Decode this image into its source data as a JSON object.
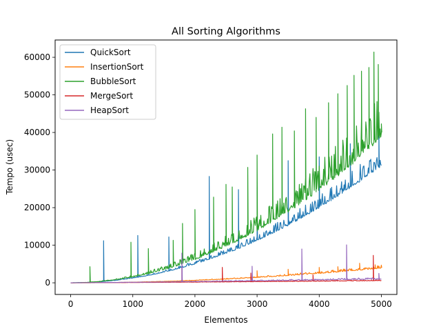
{
  "chart_data": {
    "type": "line",
    "title": "All Sorting Algorithms",
    "xlabel": "Elementos",
    "ylabel": "Tempo (usec)",
    "xlim": [
      -250,
      5250
    ],
    "ylim": [
      -3100,
      64600
    ],
    "xticks": [
      0,
      1000,
      2000,
      3000,
      4000,
      5000
    ],
    "xtick_labels": [
      "0",
      "1000",
      "2000",
      "3000",
      "4000",
      "5000"
    ],
    "yticks": [
      0,
      10000,
      20000,
      30000,
      40000,
      50000,
      60000
    ],
    "ytick_labels": [
      "0",
      "10000",
      "20000",
      "30000",
      "40000",
      "50000",
      "60000"
    ],
    "grid": false,
    "legend_position": "top-left",
    "x": [
      0,
      250,
      500,
      750,
      1000,
      1250,
      1500,
      1750,
      2000,
      2250,
      2500,
      2750,
      3000,
      3250,
      3500,
      3750,
      4000,
      4250,
      4500,
      4750,
      5000
    ],
    "series": [
      {
        "name": "QuickSort",
        "color": "#1f77b4",
        "values": [
          0,
          80,
          320,
          720,
          1270,
          1990,
          2860,
          3900,
          5090,
          6440,
          7950,
          9620,
          11450,
          13440,
          15590,
          17900,
          20360,
          22990,
          25770,
          28710,
          31800
        ],
        "spikes": [
          [
            530,
            11200
          ],
          [
            1080,
            12600
          ],
          [
            1580,
            12200
          ],
          [
            2230,
            28300
          ],
          [
            2700,
            24800
          ],
          [
            3000,
            25500
          ],
          [
            3500,
            32500
          ],
          [
            4000,
            33500
          ],
          [
            4500,
            37000
          ],
          [
            4960,
            40500
          ]
        ]
      },
      {
        "name": "InsertionSort",
        "color": "#ff7f0e",
        "values": [
          0,
          10,
          40,
          90,
          160,
          250,
          360,
          490,
          640,
          810,
          1000,
          1210,
          1440,
          1690,
          1960,
          2250,
          2560,
          2890,
          3240,
          3610,
          4000
        ],
        "spikes": [
          [
            3000,
            3200
          ],
          [
            3500,
            3600
          ],
          [
            4000,
            4100
          ],
          [
            4300,
            4300
          ],
          [
            4650,
            5200
          ],
          [
            4900,
            4800
          ],
          [
            5000,
            4600
          ]
        ]
      },
      {
        "name": "BubbleSort",
        "color": "#2ca02c",
        "values": [
          0,
          100,
          400,
          900,
          1600,
          2500,
          3600,
          4900,
          6400,
          8100,
          10000,
          12100,
          14400,
          16900,
          19600,
          22500,
          25600,
          28900,
          32400,
          36100,
          40000
        ],
        "spikes": [
          [
            310,
            4300
          ],
          [
            970,
            10800
          ],
          [
            1250,
            9100
          ],
          [
            1650,
            11300
          ],
          [
            1800,
            15800
          ],
          [
            2000,
            19500
          ],
          [
            2300,
            22800
          ],
          [
            2500,
            26200
          ],
          [
            2600,
            25500
          ],
          [
            2850,
            30700
          ],
          [
            3000,
            34000
          ],
          [
            3250,
            39600
          ],
          [
            3400,
            41400
          ],
          [
            3600,
            40400
          ],
          [
            3780,
            46300
          ],
          [
            3950,
            44000
          ],
          [
            4150,
            47900
          ],
          [
            4300,
            50300
          ],
          [
            4450,
            52500
          ],
          [
            4560,
            55200
          ],
          [
            4680,
            56300
          ],
          [
            4800,
            57300
          ],
          [
            4880,
            61400
          ],
          [
            4950,
            58100
          ],
          [
            5000,
            42300
          ]
        ]
      },
      {
        "name": "MergeSort",
        "color": "#d62728",
        "values": [
          0,
          20,
          40,
          60,
          80,
          100,
          130,
          160,
          190,
          220,
          250,
          280,
          310,
          340,
          370,
          400,
          440,
          480,
          520,
          560,
          600
        ],
        "spikes": [
          [
            1790,
            4200
          ],
          [
            2440,
            4100
          ],
          [
            2900,
            2600
          ],
          [
            3900,
            2100
          ],
          [
            4870,
            7300
          ]
        ]
      },
      {
        "name": "HeapSort",
        "color": "#9467bd",
        "values": [
          0,
          30,
          60,
          100,
          140,
          180,
          230,
          280,
          330,
          380,
          430,
          480,
          540,
          600,
          660,
          720,
          780,
          840,
          900,
          960,
          1000
        ],
        "spikes": [
          [
            1790,
            7900
          ],
          [
            2920,
            4400
          ],
          [
            3720,
            9000
          ],
          [
            4440,
            10100
          ],
          [
            4960,
            2500
          ]
        ]
      }
    ]
  }
}
